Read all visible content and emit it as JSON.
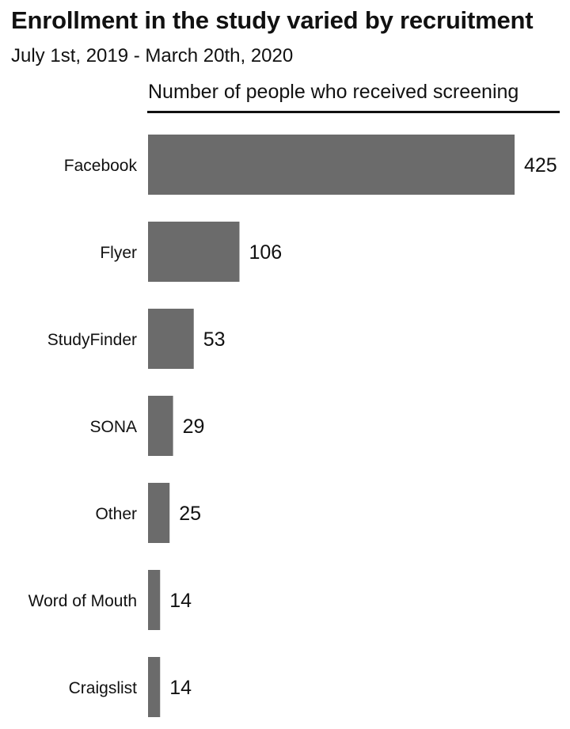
{
  "chart_data": {
    "type": "bar",
    "orientation": "horizontal",
    "title": "Enrollment in the study varied by recruitment",
    "subtitle": "July 1st, 2019 - March 20th, 2020",
    "xlabel": "Number of people who received screening",
    "ylabel": "",
    "categories": [
      "Facebook",
      "Flyer",
      "StudyFinder",
      "SONA",
      "Other",
      "Word of Mouth",
      "Craigslist"
    ],
    "values": [
      425,
      106,
      53,
      29,
      25,
      14,
      14
    ],
    "data_labels": [
      "425",
      "106",
      "53",
      "29",
      "25",
      "14",
      "14"
    ],
    "bar_color": "#6b6b6b",
    "grid": false,
    "legend": "none"
  }
}
